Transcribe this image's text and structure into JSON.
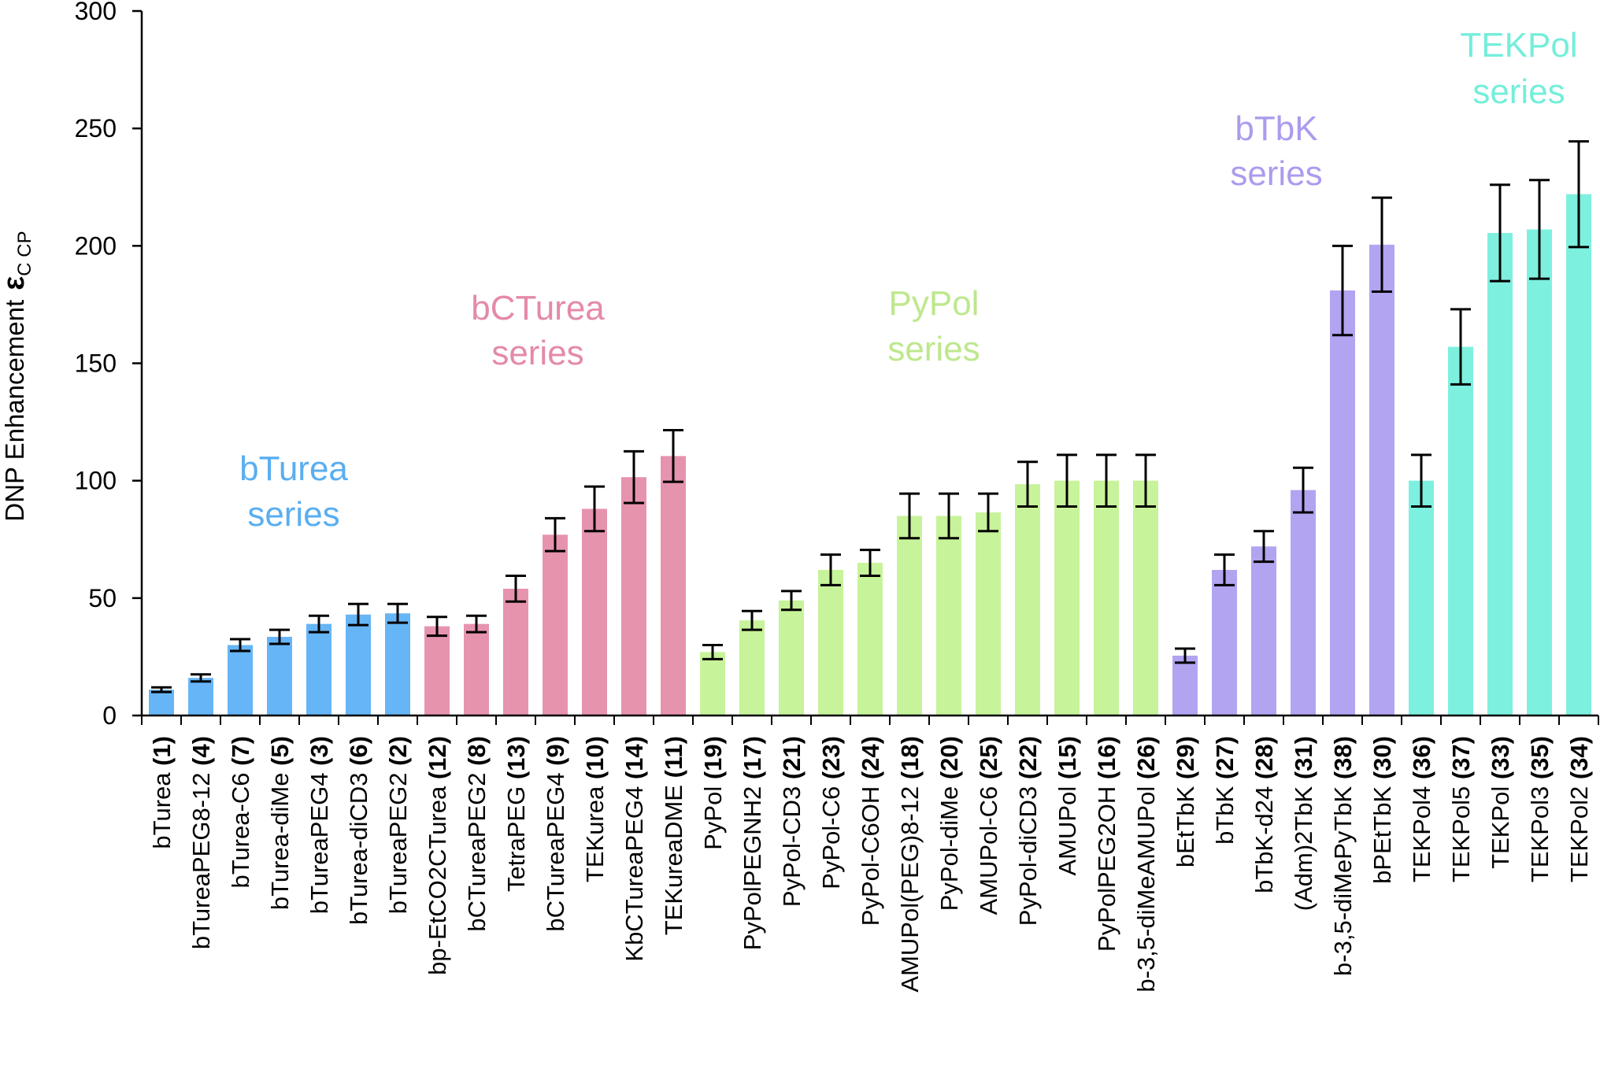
{
  "chart_data": {
    "type": "bar",
    "ylabel": "DNP Enhancement",
    "ylabel_symbol": "ε",
    "ylabel_subscript": "C CP",
    "ylim": [
      0,
      300
    ],
    "yticks": [
      "0",
      "50",
      "100",
      "150",
      "200",
      "250",
      "300"
    ],
    "grid": false,
    "categories": [
      {
        "name": "bTurea",
        "num": "(1)"
      },
      {
        "name": "bTureaPEG8-12",
        "num": "(4)"
      },
      {
        "name": "bTurea-C6",
        "num": "(7)"
      },
      {
        "name": "bTurea-diMe",
        "num": "(5)"
      },
      {
        "name": "bTureaPEG4",
        "num": "(3)"
      },
      {
        "name": "bTurea-diCD3",
        "num": "(6)"
      },
      {
        "name": "bTureaPEG2",
        "num": "(2)"
      },
      {
        "name": "bp-EtCO2CTurea",
        "num": "(12)"
      },
      {
        "name": "bCTureaPEG2",
        "num": "(8)"
      },
      {
        "name": "TetraPEG",
        "num": "(13)"
      },
      {
        "name": "bCTureaPEG4",
        "num": "(9)"
      },
      {
        "name": "TEKurea",
        "num": "(10)"
      },
      {
        "name": "KbCTureaPEG4",
        "num": "(14)"
      },
      {
        "name": "TEKureaDME",
        "num": "(11)"
      },
      {
        "name": "PyPol",
        "num": "(19)"
      },
      {
        "name": "PyPolPEGNH2",
        "num": "(17)"
      },
      {
        "name": "PyPol-CD3",
        "num": "(21)"
      },
      {
        "name": "PyPol-C6",
        "num": "(23)"
      },
      {
        "name": "PyPol-C6OH",
        "num": "(24)"
      },
      {
        "name": "AMUPol(PEG)8-12",
        "num": "(18)"
      },
      {
        "name": "PyPol-diMe",
        "num": "(20)"
      },
      {
        "name": "AMUPol-C6",
        "num": "(25)"
      },
      {
        "name": "PyPol-diCD3",
        "num": "(22)"
      },
      {
        "name": "AMUPol",
        "num": "(15)"
      },
      {
        "name": "PyPolPEG2OH",
        "num": "(16)"
      },
      {
        "name": "b-3,5-diMeAMUPol",
        "num": "(26)"
      },
      {
        "name": "bEtTbK",
        "num": "(29)"
      },
      {
        "name": "bTbK",
        "num": "(27)"
      },
      {
        "name": "bTbK-d24",
        "num": "(28)"
      },
      {
        "name": "(Adm)2TbK",
        "num": "(31)"
      },
      {
        "name": "b-3,5-diMePyTbK",
        "num": "(38)"
      },
      {
        "name": "bPEtTbK",
        "num": "(30)"
      },
      {
        "name": "TEKPol4",
        "num": "(36)"
      },
      {
        "name": "TEKPol5",
        "num": "(37)"
      },
      {
        "name": "TEKPol",
        "num": "(33)"
      },
      {
        "name": "TEKPol3",
        "num": "(35)"
      },
      {
        "name": "TEKPol2",
        "num": "(34)"
      }
    ],
    "values": [
      11,
      16,
      30,
      33.5,
      39,
      43,
      43.5,
      38,
      39,
      54,
      77,
      88,
      101.5,
      110.5,
      27,
      40.5,
      49,
      62,
      65,
      85,
      85,
      86.5,
      98.5,
      100,
      100,
      100,
      25.5,
      62,
      72,
      96,
      181,
      200.5,
      100,
      157,
      205.5,
      207,
      222
    ],
    "errors": [
      1,
      1.5,
      2.5,
      3,
      3.5,
      4.5,
      4,
      4,
      3.5,
      5.5,
      7,
      9.5,
      11,
      11,
      3,
      4,
      4,
      6.5,
      5.5,
      9.5,
      9.5,
      8,
      9.5,
      11,
      11,
      11,
      3,
      6.5,
      6.5,
      9.5,
      19,
      20,
      11,
      16,
      20.5,
      21,
      22.5
    ],
    "series_groups": [
      {
        "label_line1": "bTurea",
        "label_line2": "series",
        "start": 0,
        "end": 6,
        "color": "#66b5f6",
        "text_color": "#5aaef0"
      },
      {
        "label_line1": "bCTurea",
        "label_line2": "series",
        "start": 7,
        "end": 13,
        "color": "#e693ae",
        "text_color": "#e48aa8"
      },
      {
        "label_line1": "PyPol",
        "label_line2": "series",
        "start": 14,
        "end": 25,
        "color": "#c7f39a",
        "text_color": "#bde88c"
      },
      {
        "label_line1": "bTbK",
        "label_line2": "series",
        "start": 26,
        "end": 31,
        "color": "#b3a4f1",
        "text_color": "#ac9bee"
      },
      {
        "label_line1": "TEKPol",
        "label_line2": "series",
        "start": 32,
        "end": 36,
        "color": "#7ef0df",
        "text_color": "#74eedb"
      }
    ]
  }
}
